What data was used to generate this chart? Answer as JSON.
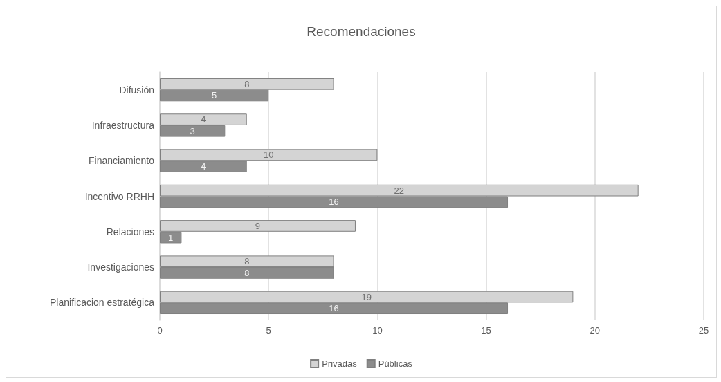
{
  "chart_data": {
    "type": "bar",
    "orientation": "horizontal",
    "title": "Recomendaciones",
    "categories": [
      "Difusión",
      "Infraestructura",
      "Financiamiento",
      "Incentivo RRHH",
      "Relaciones",
      "Investigaciones",
      "Planificacion estratégica"
    ],
    "series": [
      {
        "name": "Privadas",
        "color": "#d4d4d4",
        "values": [
          8,
          4,
          10,
          22,
          9,
          8,
          19
        ]
      },
      {
        "name": "Públicas",
        "color": "#8c8c8c",
        "values": [
          5,
          3,
          4,
          16,
          1,
          8,
          16
        ]
      }
    ],
    "xlim": [
      0,
      25
    ],
    "xticks": [
      0,
      5,
      10,
      15,
      20,
      25
    ],
    "grid": "x",
    "legend": "bottom",
    "data_labels": true
  }
}
